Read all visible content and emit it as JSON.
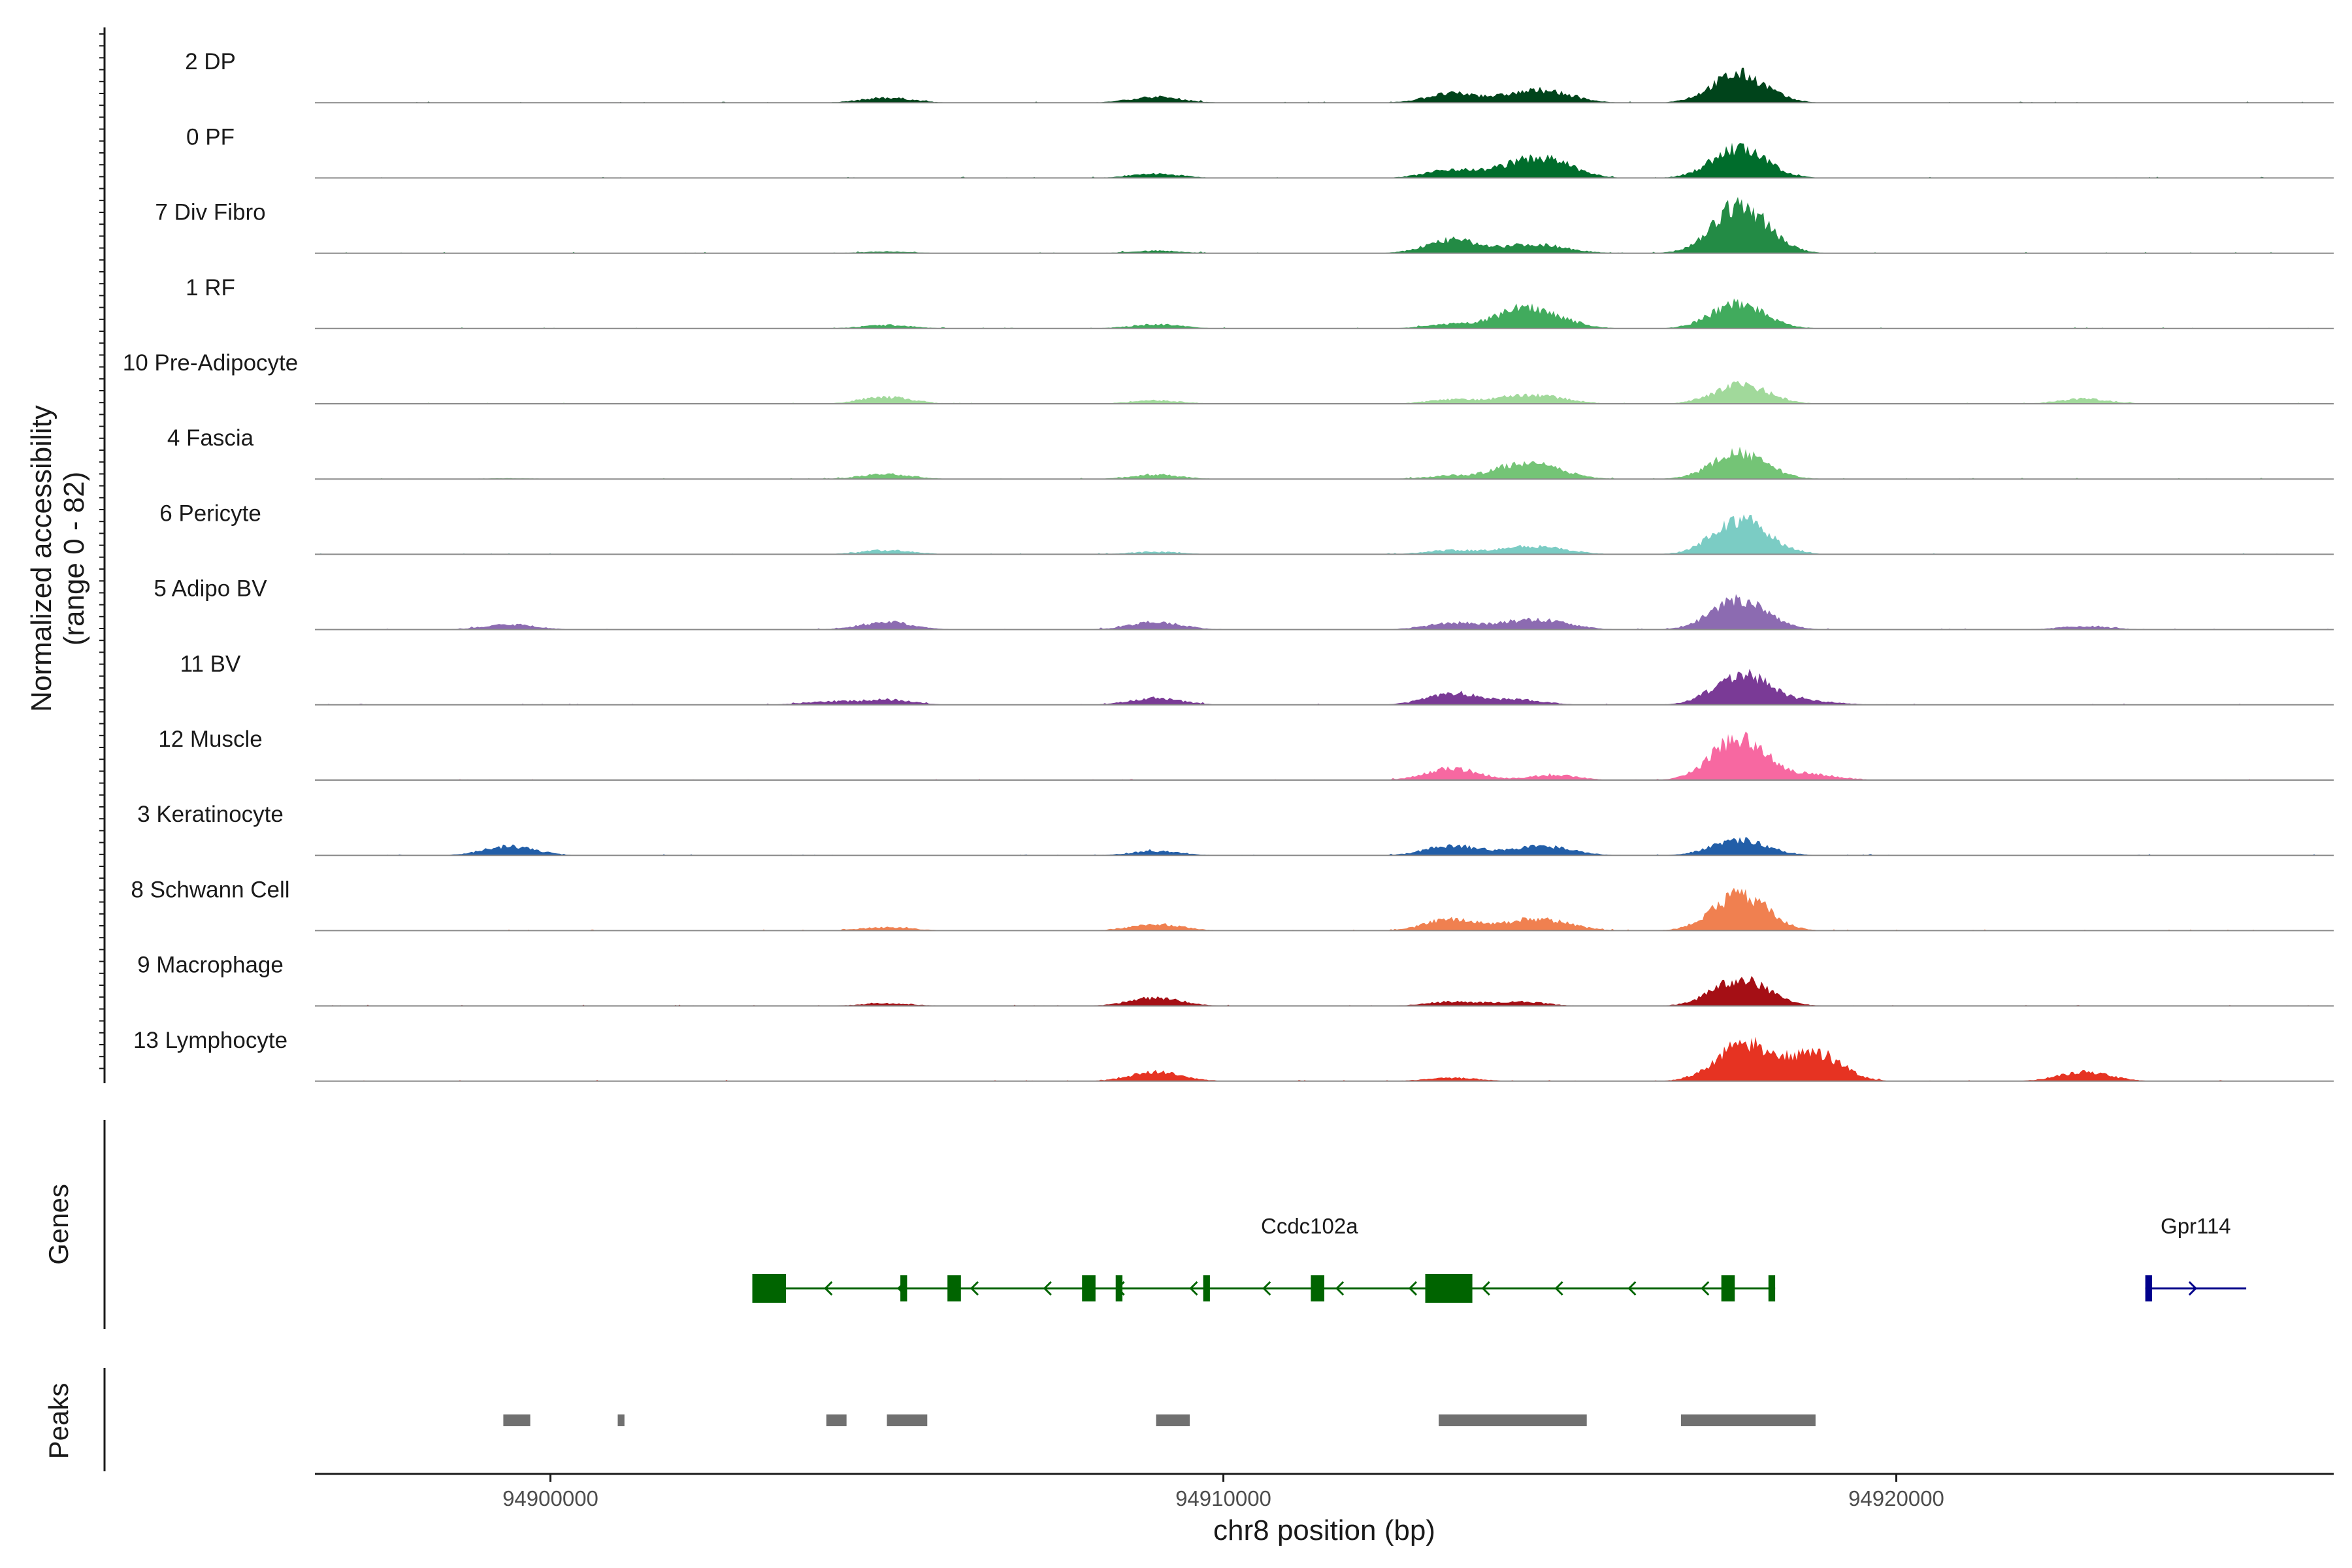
{
  "chart_data": {
    "type": "area",
    "title": "",
    "ylabel": "Normalized accessibility",
    "ylabel_range": "(range 0 - 82)",
    "ylim": [
      0,
      82
    ],
    "xlabel": "chr8 position (bp)",
    "xlim": [
      94896500,
      94926500
    ],
    "x_ticks": [
      94900000,
      94910000,
      94920000
    ],
    "x_tick_labels": [
      "94900000",
      "94910000",
      "94920000"
    ],
    "peak_positions": {
      "k1": 94899400,
      "k2": 94904100,
      "k3": 94905000,
      "k4": 94909000,
      "k5": 94913400,
      "k6": 94914400,
      "k7": 94914900,
      "k8": 94917600,
      "k9": 94917900,
      "k10": 94918800,
      "k11": 94922800
    },
    "series": [
      {
        "name": "2 DP",
        "color": "#00441b",
        "peaks": {
          "k3": 6,
          "k4": 7,
          "k5": 11,
          "k6": 8,
          "k7": 10,
          "k8": 28,
          "k9": 8
        }
      },
      {
        "name": "0 PF",
        "color": "#006d2c",
        "peaks": {
          "k4": 5,
          "k5": 10,
          "k6": 14,
          "k7": 16,
          "k8": 29,
          "k9": 8
        }
      },
      {
        "name": "7 Div Fibro",
        "color": "#238b45",
        "peaks": {
          "k3": 2,
          "k4": 3,
          "k5": 16,
          "k6": 7,
          "k7": 6,
          "k8": 42,
          "k9": 18
        }
      },
      {
        "name": "1 RF",
        "color": "#41ab5d",
        "peaks": {
          "k3": 4,
          "k4": 5,
          "k5": 5,
          "k6": 20,
          "k7": 10,
          "k8": 25,
          "k9": 6
        }
      },
      {
        "name": "10 Pre-Adipocyte",
        "color": "#a1d99b",
        "peaks": {
          "k3": 8,
          "k4": 4,
          "k5": 5,
          "k6": 8,
          "k7": 5,
          "k8": 16,
          "k9": 8,
          "k11": 6
        }
      },
      {
        "name": "4 Fascia",
        "color": "#74c476",
        "peaks": {
          "k1": 1,
          "k3": 6,
          "k4": 5,
          "k5": 4,
          "k6": 16,
          "k7": 7,
          "k8": 25,
          "k9": 8
        }
      },
      {
        "name": "6 Pericyte",
        "color": "#7bccc4",
        "peaks": {
          "k3": 5,
          "k4": 3,
          "k5": 5,
          "k6": 7,
          "k7": 5,
          "k8": 30,
          "k9": 14
        }
      },
      {
        "name": "5 Adipo BV",
        "color": "#8c6bb1",
        "peaks": {
          "k1": 6,
          "k3": 9,
          "k4": 9,
          "k5": 8,
          "k6": 8,
          "k7": 7,
          "k8": 30,
          "k9": 9,
          "k11": 4
        }
      },
      {
        "name": "11 BV",
        "color": "#7a3a96",
        "peaks": {
          "k2": 4,
          "k3": 6,
          "k4": 8,
          "k5": 14,
          "k6": 6,
          "k8": 23,
          "k9": 16,
          "k10": 4
        }
      },
      {
        "name": "12 Muscle",
        "color": "#f768a1",
        "peaks": {
          "k5": 14,
          "k7": 6,
          "k8": 40,
          "k9": 14,
          "k10": 6
        }
      },
      {
        "name": "3 Keratinocyte",
        "color": "#225ea8",
        "peaks": {
          "k1": 11,
          "k4": 5,
          "k5": 12,
          "k6": 5,
          "k7": 8,
          "k8": 15,
          "k9": 5
        }
      },
      {
        "name": "8 Schwann Cell",
        "color": "#f08050",
        "peaks": {
          "k3": 4,
          "k4": 8,
          "k5": 14,
          "k6": 8,
          "k7": 9,
          "k8": 33,
          "k9": 12
        }
      },
      {
        "name": "9 Macrophage",
        "color": "#a50f15",
        "peaks": {
          "k3": 3,
          "k4": 10,
          "k5": 5,
          "k6": 5,
          "k8": 24,
          "k9": 10
        }
      },
      {
        "name": "13 Lymphocyte",
        "color": "#e63322",
        "peaks": {
          "k4": 11,
          "k5": 4,
          "k8": 26,
          "k9": 22,
          "k10": 34,
          "k11": 11
        }
      }
    ],
    "genes": {
      "panel_label": "Genes",
      "items": [
        {
          "name": "Ccdc102a",
          "start": 94903000,
          "end": 94918200,
          "strand": "-",
          "color": "#006400",
          "exons": [
            [
              94903000,
              94903500
            ],
            [
              94905200,
              94905300
            ],
            [
              94905900,
              94906100
            ],
            [
              94907900,
              94908100
            ],
            [
              94908400,
              94908500
            ],
            [
              94909700,
              94909800
            ],
            [
              94911300,
              94911500
            ],
            [
              94913000,
              94913700
            ],
            [
              94917400,
              94917600
            ],
            [
              94918100,
              94918200
            ]
          ]
        },
        {
          "name": "Gpr114",
          "start": 94923700,
          "end": 94925200,
          "strand": "+",
          "color": "#00008b",
          "exons": [
            [
              94923700,
              94923800
            ]
          ]
        }
      ]
    },
    "peaks_panel": {
      "panel_label": "Peaks",
      "color": "#707070",
      "regions": [
        [
          94899300,
          94899700
        ],
        [
          94901000,
          94901100
        ],
        [
          94904100,
          94904400
        ],
        [
          94905000,
          94905600
        ],
        [
          94909000,
          94909500
        ],
        [
          94913200,
          94915400
        ],
        [
          94916800,
          94918800
        ]
      ]
    }
  }
}
